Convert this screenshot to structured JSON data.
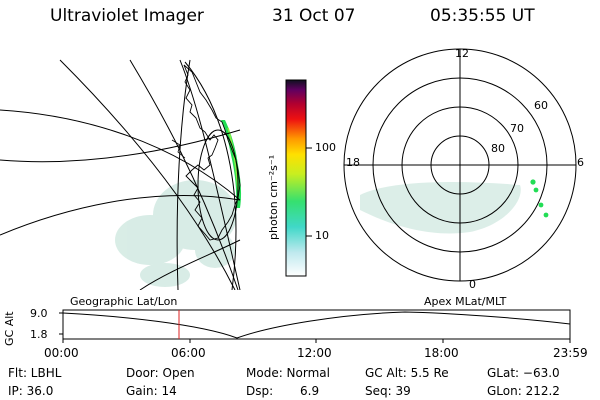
{
  "header": {
    "instrument": "Ultraviolet Imager",
    "date": "31 Oct 07",
    "time": "05:35:55 UT"
  },
  "colorbar": {
    "ticks": [
      "100",
      "10"
    ],
    "unit_label": "photon cm⁻²s⁻¹"
  },
  "polar_plot": {
    "mlt_labels": [
      "12",
      "18",
      "6",
      "0"
    ],
    "lat_labels": [
      "60",
      "70",
      "80"
    ]
  },
  "panel_labels": {
    "left": "Geographic Lat/Lon",
    "right": "Apex MLat/MLT"
  },
  "altitude_plot": {
    "ylabel": "GC Alt",
    "y_ticks": [
      "9.0",
      "1.8"
    ],
    "x_ticks": [
      "00:00",
      "06:00",
      "12:00",
      "18:00",
      "23:59"
    ]
  },
  "info": {
    "filter": "Flt:  LBHL",
    "ip": "IP:  36.0",
    "door": "Door:  Open",
    "gain": "Gain:  14",
    "mode": "Mode:  Normal",
    "dsp_label": "Dsp:",
    "dsp_value": "6.9",
    "gc_alt": "GC Alt:  5.5 Re",
    "seq": "Seq:  39",
    "glat": "GLat:  −63.0",
    "glon": "GLon:  212.2"
  },
  "colors": {
    "aurora_green": "#22dd55",
    "diffuse": "#cfe8e0",
    "marker": "#dd2222"
  }
}
